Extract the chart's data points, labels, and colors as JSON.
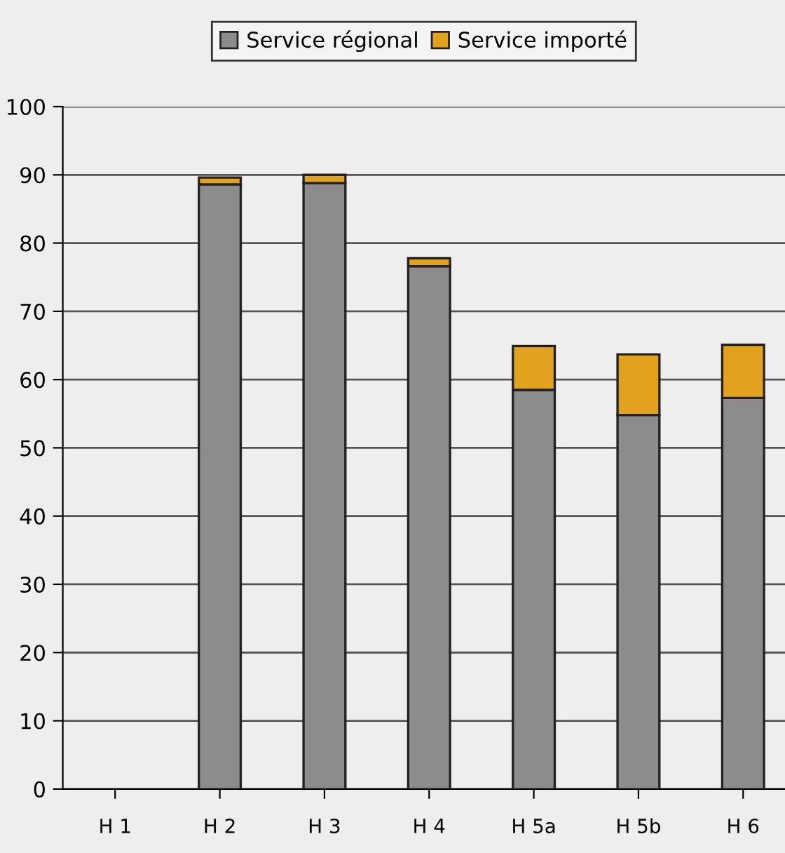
{
  "chart_data": {
    "type": "bar",
    "stacked": true,
    "categories": [
      "H 1",
      "H 2",
      "H 3",
      "H 4",
      "H 5a",
      "H 5b",
      "H 6"
    ],
    "series": [
      {
        "name": "Service régional",
        "color": "#8c8c8c",
        "values": [
          0,
          88.6,
          88.8,
          76.6,
          58.5,
          54.8,
          57.3
        ]
      },
      {
        "name": "Service importé",
        "color": "#e3a21e",
        "values": [
          0,
          1.0,
          1.2,
          1.2,
          6.4,
          8.9,
          7.8
        ]
      }
    ],
    "ylim": [
      0,
      100
    ],
    "yticks": [
      0,
      10,
      20,
      30,
      40,
      50,
      60,
      70,
      80,
      90,
      100
    ],
    "grid": "y",
    "legend": "top"
  }
}
